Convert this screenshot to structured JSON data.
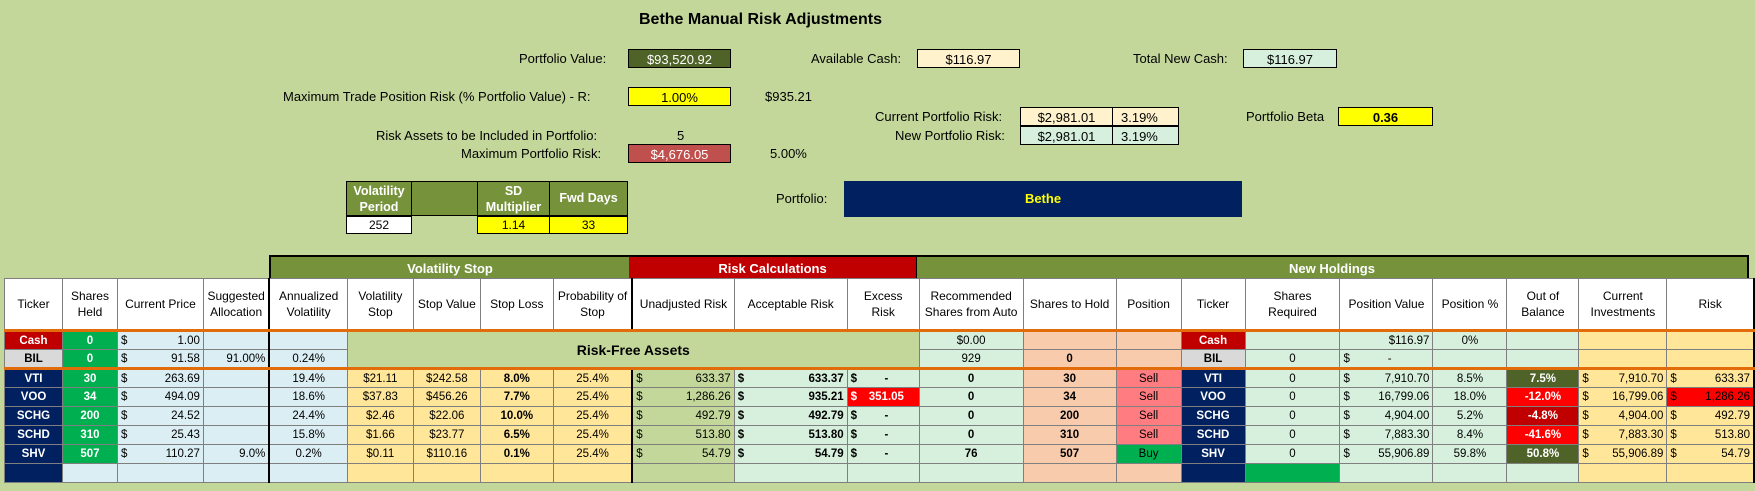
{
  "title": "Bethe Manual Risk Adjustments",
  "summary": {
    "portfolio_value_label": "Portfolio Value:",
    "portfolio_value": "$93,520.92",
    "available_cash_label": "Available Cash:",
    "available_cash": "$116.97",
    "total_new_cash_label": "Total New Cash:",
    "total_new_cash": "$116.97",
    "max_trade_risk_label": "Maximum Trade Position Risk (% Portfolio Value) - R:",
    "max_trade_risk_pct": "1.00%",
    "max_trade_risk_value": "$935.21",
    "current_risk_label": "Current Portfolio Risk:",
    "current_risk_value": "$2,981.01",
    "current_risk_pct": "3.19%",
    "new_risk_label": "New Portfolio Risk:",
    "new_risk_value": "$2,981.01",
    "new_risk_pct": "3.19%",
    "beta_label": "Portfolio Beta",
    "beta_value": "0.36",
    "risk_assets_label": "Risk Assets to be Included in Portfolio:",
    "risk_assets_value": "5",
    "max_portfolio_risk_label": "Maximum Portfolio Risk:",
    "max_portfolio_risk_value": "$4,676.05",
    "max_portfolio_risk_pct": "5.00%",
    "portfolio_label": "Portfolio:",
    "portfolio_name": "Bethe"
  },
  "params": {
    "vol_period_label": "Volatility Period",
    "vol_period": "252",
    "sd_mult_label": "SD Multiplier",
    "sd_mult": "1.14",
    "fwd_days_label": "Fwd Days",
    "fwd_days": "33"
  },
  "sections": {
    "volatility_stop": "Volatility Stop",
    "risk_calculations": "Risk Calculations",
    "new_holdings": "New Holdings",
    "risk_free_assets": "Risk-Free Assets"
  },
  "headers": [
    "Ticker",
    "Shares Held",
    "Current Price",
    "Suggested Allocation",
    "Annualized Volatility",
    "Volatility Stop",
    "Stop Value",
    "Stop Loss",
    "Probability of Stop",
    "Unadjusted Risk",
    "Acceptable Risk",
    "Excess Risk",
    "Recommended Shares from Auto",
    "Shares to Hold",
    "Position",
    "Ticker",
    "Shares Required",
    "Position Value",
    "Position %",
    "Out of Balance",
    "Current Investments",
    "Risk"
  ],
  "cash_row": {
    "ticker": "Cash",
    "shares": "0",
    "price": "1.00",
    "rec": "$0.00",
    "ticker2": "Cash",
    "pos_value": "$116.97",
    "pos_pct": "0%"
  },
  "bil_row": {
    "ticker": "BIL",
    "shares": "0",
    "price": "91.58",
    "alloc": "91.00%",
    "vol": "0.24%",
    "rec": "929",
    "hold": "0",
    "ticker2": "BIL",
    "req": "0",
    "pos_value": "-"
  },
  "rows": [
    {
      "ticker": "VTI",
      "shares": "30",
      "price": "263.69",
      "alloc": "",
      "vol": "19.4%",
      "vstop": "$21.11",
      "sval": "$242.58",
      "sloss": "8.0%",
      "prob": "25.4%",
      "unadj": "633.37",
      "accept": "633.37",
      "excess": "-",
      "rec": "0",
      "hold": "30",
      "pos": "Sell",
      "req": "0",
      "pval": "7,910.70",
      "ppct": "8.5%",
      "oob": "7.5%",
      "cur": "7,910.70",
      "risk": "633.37"
    },
    {
      "ticker": "VOO",
      "shares": "34",
      "price": "494.09",
      "alloc": "",
      "vol": "18.6%",
      "vstop": "$37.83",
      "sval": "$456.26",
      "sloss": "7.7%",
      "prob": "25.4%",
      "unadj": "1,286.26",
      "accept": "935.21",
      "excess": "351.05",
      "rec": "0",
      "hold": "34",
      "pos": "Sell",
      "req": "0",
      "pval": "16,799.06",
      "ppct": "18.0%",
      "oob": "-12.0%",
      "cur": "16,799.06",
      "risk": "1,286.26"
    },
    {
      "ticker": "SCHG",
      "shares": "200",
      "price": "24.52",
      "alloc": "",
      "vol": "24.4%",
      "vstop": "$2.46",
      "sval": "$22.06",
      "sloss": "10.0%",
      "prob": "25.4%",
      "unadj": "492.79",
      "accept": "492.79",
      "excess": "-",
      "rec": "0",
      "hold": "200",
      "pos": "Sell",
      "req": "0",
      "pval": "4,904.00",
      "ppct": "5.2%",
      "oob": "-4.8%",
      "cur": "4,904.00",
      "risk": "492.79"
    },
    {
      "ticker": "SCHD",
      "shares": "310",
      "price": "25.43",
      "alloc": "",
      "vol": "15.8%",
      "vstop": "$1.66",
      "sval": "$23.77",
      "sloss": "6.5%",
      "prob": "25.4%",
      "unadj": "513.80",
      "accept": "513.80",
      "excess": "-",
      "rec": "0",
      "hold": "310",
      "pos": "Sell",
      "req": "0",
      "pval": "7,883.30",
      "ppct": "8.4%",
      "oob": "-41.6%",
      "cur": "7,883.30",
      "risk": "513.80"
    },
    {
      "ticker": "SHV",
      "shares": "507",
      "price": "110.27",
      "alloc": "9.0%",
      "vol": "0.2%",
      "vstop": "$0.11",
      "sval": "$110.16",
      "sloss": "0.1%",
      "prob": "25.4%",
      "unadj": "54.79",
      "accept": "54.79",
      "excess": "-",
      "rec": "76",
      "hold": "507",
      "pos": "Buy",
      "req": "0",
      "pval": "55,906.89",
      "ppct": "59.8%",
      "oob": "50.8%",
      "cur": "55,906.89",
      "risk": "54.79"
    }
  ],
  "colors": {
    "background": "#c4d79b",
    "navy": "#002060",
    "ticker_green": "#00b050",
    "risk_red": "#c00000",
    "section_green": "#76933c"
  }
}
